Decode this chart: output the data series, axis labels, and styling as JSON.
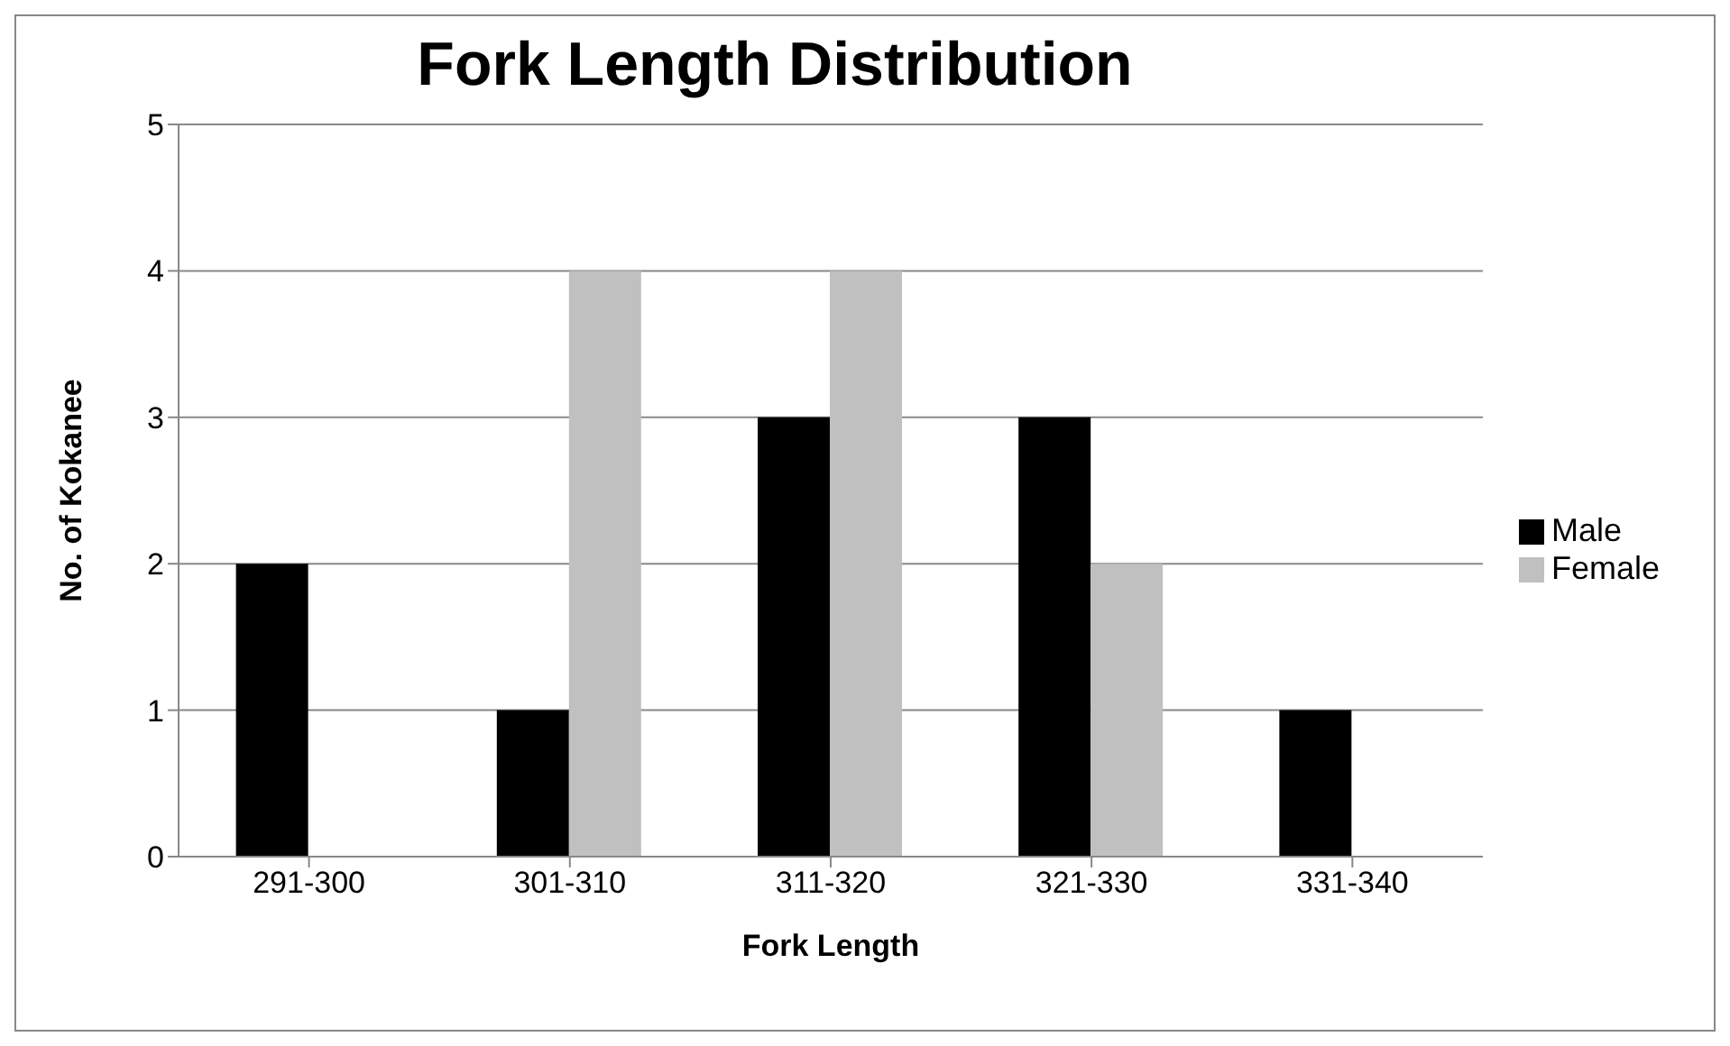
{
  "chart_data": {
    "type": "bar",
    "title": "Fork Length Distribution",
    "xlabel": "Fork Length",
    "ylabel": "No. of Kokanee",
    "categories": [
      "291-300",
      "301-310",
      "311-320",
      "321-330",
      "331-340"
    ],
    "series": [
      {
        "name": "Male",
        "color": "#000000",
        "values": [
          2,
          1,
          3,
          3,
          1
        ]
      },
      {
        "name": "Female",
        "color": "#c0c0c0",
        "values": [
          0,
          4,
          4,
          2,
          0
        ]
      }
    ],
    "ylim": [
      0,
      5
    ],
    "yticks": [
      0,
      1,
      2,
      3,
      4,
      5
    ],
    "grid": "y",
    "legend": "right"
  }
}
